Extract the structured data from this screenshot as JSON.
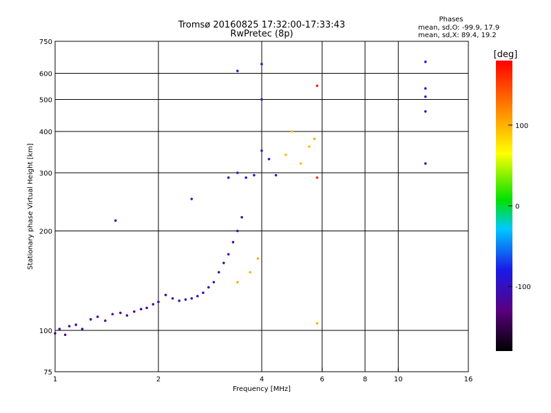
{
  "chart_data": {
    "type": "scatter",
    "title": "Tromsø 20160825 17:32:00-17:33:43",
    "subtitle": "RwPretec (8p)",
    "phases_header": "Phases",
    "phases_line1": "mean, sd,O: -99.9, 17.9",
    "phases_line2": "mean, sd,X:  89.4, 19.2",
    "xlabel": "Frequency [MHz]",
    "ylabel": "Stationary phase Virtual Height [km]",
    "x_scale": "log",
    "y_scale": "log",
    "xlim": [
      1,
      16
    ],
    "ylim": [
      75,
      750
    ],
    "x_ticks": [
      1,
      2,
      4,
      6,
      8,
      10,
      16
    ],
    "y_ticks": [
      75,
      100,
      200,
      300,
      400,
      500,
      600,
      750
    ],
    "x_gridlines": [
      2,
      4,
      6,
      8,
      10
    ],
    "y_gridlines": [
      100,
      200,
      300,
      400,
      500,
      600
    ],
    "grid": true,
    "colorbar": {
      "label": "[deg]",
      "range": [
        -180,
        180
      ],
      "ticks": [
        100,
        0,
        -100
      ]
    },
    "points": [
      {
        "f": 1.0,
        "h": 98,
        "p": -120
      },
      {
        "f": 1.03,
        "h": 101,
        "p": -115
      },
      {
        "f": 1.07,
        "h": 97,
        "p": -125
      },
      {
        "f": 1.1,
        "h": 103,
        "p": -110
      },
      {
        "f": 1.15,
        "h": 104,
        "p": -105
      },
      {
        "f": 1.2,
        "h": 101,
        "p": -120
      },
      {
        "f": 1.27,
        "h": 108,
        "p": -125
      },
      {
        "f": 1.33,
        "h": 110,
        "p": -120
      },
      {
        "f": 1.4,
        "h": 107,
        "p": -125
      },
      {
        "f": 1.47,
        "h": 112,
        "p": -120
      },
      {
        "f": 1.55,
        "h": 113,
        "p": -115
      },
      {
        "f": 1.62,
        "h": 111,
        "p": -125
      },
      {
        "f": 1.7,
        "h": 114,
        "p": -120
      },
      {
        "f": 1.78,
        "h": 116,
        "p": -115
      },
      {
        "f": 1.85,
        "h": 117,
        "p": -120
      },
      {
        "f": 1.93,
        "h": 120,
        "p": -110
      },
      {
        "f": 2.0,
        "h": 122,
        "p": -115
      },
      {
        "f": 2.1,
        "h": 128,
        "p": -110
      },
      {
        "f": 2.2,
        "h": 125,
        "p": -105
      },
      {
        "f": 2.3,
        "h": 123,
        "p": -105
      },
      {
        "f": 2.4,
        "h": 124,
        "p": -110
      },
      {
        "f": 2.5,
        "h": 125,
        "p": -100
      },
      {
        "f": 2.6,
        "h": 127,
        "p": -100
      },
      {
        "f": 2.7,
        "h": 130,
        "p": -95
      },
      {
        "f": 2.8,
        "h": 135,
        "p": -95
      },
      {
        "f": 2.9,
        "h": 140,
        "p": -100
      },
      {
        "f": 3.0,
        "h": 150,
        "p": -110
      },
      {
        "f": 3.1,
        "h": 160,
        "p": -115
      },
      {
        "f": 3.2,
        "h": 170,
        "p": -115
      },
      {
        "f": 3.3,
        "h": 185,
        "p": -115
      },
      {
        "f": 3.4,
        "h": 200,
        "p": -110
      },
      {
        "f": 3.5,
        "h": 220,
        "p": -110
      },
      {
        "f": 3.2,
        "h": 290,
        "p": -100
      },
      {
        "f": 3.4,
        "h": 300,
        "p": -105
      },
      {
        "f": 3.6,
        "h": 290,
        "p": -100
      },
      {
        "f": 3.8,
        "h": 295,
        "p": -100
      },
      {
        "f": 4.0,
        "h": 350,
        "p": -95
      },
      {
        "f": 4.0,
        "h": 500,
        "p": -95
      },
      {
        "f": 4.0,
        "h": 640,
        "p": -95
      },
      {
        "f": 4.2,
        "h": 330,
        "p": -95
      },
      {
        "f": 4.4,
        "h": 295,
        "p": -95
      },
      {
        "f": 4.7,
        "h": 340,
        "p": 95
      },
      {
        "f": 4.9,
        "h": 400,
        "p": 95
      },
      {
        "f": 5.2,
        "h": 320,
        "p": 95
      },
      {
        "f": 5.5,
        "h": 360,
        "p": 95
      },
      {
        "f": 5.7,
        "h": 380,
        "p": 100
      },
      {
        "f": 3.4,
        "h": 140,
        "p": 100
      },
      {
        "f": 3.7,
        "h": 150,
        "p": 100
      },
      {
        "f": 3.9,
        "h": 165,
        "p": 100
      },
      {
        "f": 2.5,
        "h": 250,
        "p": -85
      },
      {
        "f": 1.5,
        "h": 215,
        "p": -120
      },
      {
        "f": 3.4,
        "h": 610,
        "p": -90
      },
      {
        "f": 12.0,
        "h": 650,
        "p": -80
      },
      {
        "f": 12.0,
        "h": 540,
        "p": -80
      },
      {
        "f": 12.0,
        "h": 510,
        "p": -100
      },
      {
        "f": 12.0,
        "h": 460,
        "p": -100
      },
      {
        "f": 12.0,
        "h": 320,
        "p": -115
      },
      {
        "f": 5.8,
        "h": 550,
        "p": 170
      },
      {
        "f": 5.8,
        "h": 290,
        "p": 160
      },
      {
        "f": 5.8,
        "h": 105,
        "p": 95
      }
    ]
  }
}
